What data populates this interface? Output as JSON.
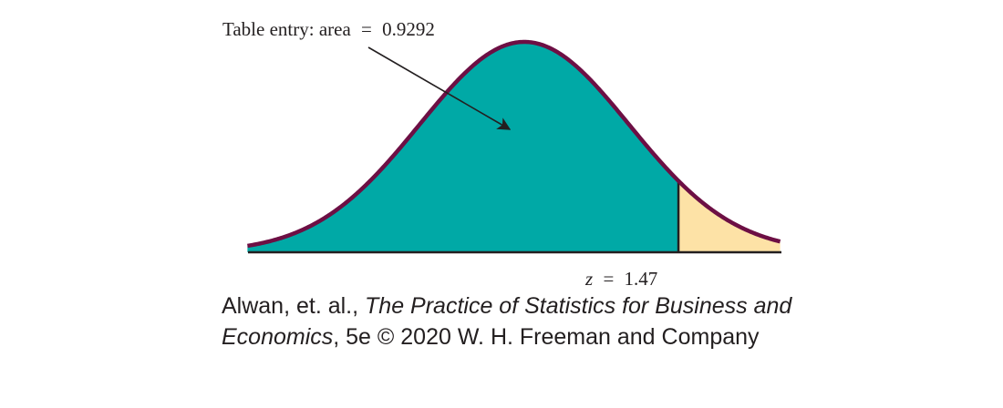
{
  "figure": {
    "annotation": {
      "prefix": "Table entry: area",
      "equals": "=",
      "value": "0.9292"
    },
    "z_marker": {
      "variable": "z",
      "equals": "=",
      "value": "1.47"
    },
    "colors": {
      "left_area": "#00a9a6",
      "right_tail": "#fde2a6",
      "curve": "#6d0f44",
      "axis": "#231f20"
    }
  },
  "credit": {
    "authors": "Alwan, et. al., ",
    "book_title": "The Practice of Statistics for Business and Economics",
    "edition_publisher": ", 5e © 2020 W. H. Freeman and Company"
  }
}
